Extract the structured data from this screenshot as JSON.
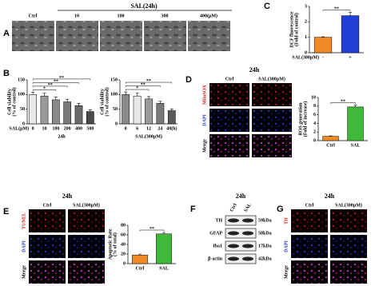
{
  "chart_data": [
    {
      "type": "bar",
      "ylabel": [
        "DCF fluorescence",
        "(Fold of control)"
      ],
      "xlabel": "SAL(300μM)",
      "categories": [
        "-",
        "+"
      ],
      "values": [
        1.0,
        2.4
      ],
      "errors": [
        0.03,
        0.2
      ],
      "colors": [
        "#f08a24",
        "#1f3fd6"
      ],
      "ylim": [
        0,
        3
      ],
      "yticks": [
        0,
        1,
        2,
        3
      ],
      "annotations": [
        "**"
      ]
    },
    {
      "type": "bar",
      "ylabel": [
        "Cell viability",
        "(% of control)"
      ],
      "xlabel": "SAL(μM)",
      "group_label": "24h",
      "categories": [
        "0",
        "10",
        "100",
        "200",
        "400",
        "500"
      ],
      "values": [
        100,
        95,
        82,
        75,
        62,
        42
      ],
      "errors": [
        8,
        10,
        10,
        9,
        8,
        6
      ],
      "colors": [
        "#e8e8e8",
        "#9a9a9a",
        "#8a8a8a",
        "#7a7a7a",
        "#6a6a6a",
        "#4a4a4a"
      ],
      "ylim": [
        0,
        150
      ],
      "yticks": [
        0,
        50,
        100,
        150
      ],
      "annotations": [
        "*",
        "**",
        "**",
        "**"
      ]
    },
    {
      "type": "bar",
      "ylabel": [
        "Cell viability",
        "(% of control)"
      ],
      "group_label": "SAL(300μM)",
      "categories": [
        "0",
        "6",
        "12",
        "24",
        "48(h)"
      ],
      "values": [
        100,
        95,
        85,
        70,
        45
      ],
      "errors": [
        9,
        10,
        8,
        7,
        6
      ],
      "colors": [
        "#8a8a8a",
        "#e8e8e8",
        "#9a9a9a",
        "#7a7a7a",
        "#5a5a5a"
      ],
      "ylim": [
        0,
        150
      ],
      "yticks": [
        0,
        50,
        100,
        150
      ],
      "annotations": [
        "*",
        "**",
        "**"
      ]
    },
    {
      "type": "bar",
      "ylabel": [
        "ROS generation",
        "(Fold of increase)"
      ],
      "categories": [
        "Ctrl",
        "SAL"
      ],
      "values": [
        1.0,
        7.8
      ],
      "errors": [
        0.1,
        0.4
      ],
      "colors": [
        "#f08a24",
        "#3fb93a"
      ],
      "ylim": [
        0,
        10
      ],
      "yticks": [
        0,
        2,
        4,
        6,
        8,
        10
      ],
      "annotations": [
        "**"
      ]
    },
    {
      "type": "bar",
      "ylabel": [
        "Apoptotic Rate",
        "(% of total)"
      ],
      "categories": [
        "Ctrl",
        "SAL"
      ],
      "values": [
        18,
        62
      ],
      "errors": [
        2,
        3
      ],
      "colors": [
        "#f08a24",
        "#3fb93a"
      ],
      "ylim": [
        0,
        80
      ],
      "yticks": [
        0,
        20,
        40,
        60,
        80
      ],
      "annotations": [
        "**"
      ]
    }
  ],
  "panel_a": {
    "label": "A",
    "header": "SAL(24h)",
    "columns": [
      "Ctrl",
      "10",
      "100",
      "300",
      "400(μM)"
    ]
  },
  "panel_b": {
    "label": "B"
  },
  "panel_c": {
    "label": "C"
  },
  "panel_d": {
    "label": "D",
    "header": "24h",
    "columns": [
      "Ctrl",
      "SAL(300μM)"
    ],
    "rows": [
      "MitoSOX",
      "DAPI",
      "Merge"
    ]
  },
  "panel_e": {
    "label": "E",
    "header": "24h",
    "columns": [
      "Ctrl",
      "SAL(300μM)"
    ],
    "rows": [
      "TUNEL",
      "DAPI",
      "Merge"
    ]
  },
  "panel_f": {
    "label": "F",
    "header": "24h",
    "columns": [
      "Ctrl",
      "SAL"
    ],
    "rows": [
      "TH",
      "GFAP",
      "Iba1",
      "β-actin"
    ],
    "sizes": [
      "59kDa",
      "50kDa",
      "17kDa",
      "42kDa"
    ]
  },
  "panel_g": {
    "label": "G",
    "header": "24h",
    "columns": [
      "Ctrl",
      "SAL(300μM)"
    ],
    "rows": [
      "TH",
      "DAPI",
      "Merge"
    ]
  }
}
